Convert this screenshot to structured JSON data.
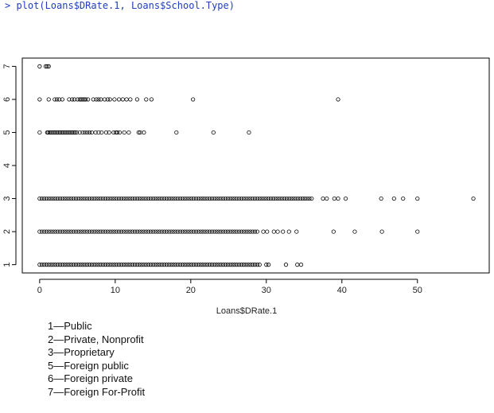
{
  "console": {
    "command": "> plot(Loans$DRate.1, Loans$School.Type)"
  },
  "chart_data": {
    "type": "scatter",
    "title": "",
    "xlabel": "Loans$DRate.1",
    "ylabel": "",
    "xlim": [
      -2.3,
      59.5
    ],
    "ylim": [
      0.75,
      7.25
    ],
    "x_ticks": [
      0,
      10,
      20,
      30,
      40,
      50
    ],
    "y_ticks": [
      1,
      2,
      3,
      4,
      5,
      6,
      7
    ],
    "marker": "open-circle",
    "grid": false,
    "legend": "none",
    "rows": [
      {
        "y": 1,
        "points": [
          0,
          0.3,
          0.6,
          0.9,
          1.2,
          1.5,
          1.8,
          2.1,
          2.4,
          2.7,
          3,
          3.3,
          3.6,
          3.9,
          4.2,
          4.5,
          4.8,
          5.1,
          5.4,
          5.7,
          6,
          6.3,
          6.6,
          6.9,
          7.2,
          7.5,
          7.8,
          8.1,
          8.4,
          8.7,
          9,
          9.3,
          9.6,
          9.9,
          10.2,
          10.5,
          10.8,
          11.1,
          11.4,
          11.7,
          12,
          12.3,
          12.6,
          12.9,
          13.2,
          13.5,
          13.8,
          14.1,
          14.4,
          14.7,
          15,
          15.3,
          15.6,
          15.9,
          16.2,
          16.5,
          16.8,
          17.1,
          17.4,
          17.7,
          18,
          18.3,
          18.6,
          18.9,
          19.2,
          19.5,
          19.8,
          20.1,
          20.4,
          20.7,
          21,
          21.3,
          21.6,
          21.9,
          22.2,
          22.5,
          22.8,
          23.1,
          23.4,
          23.7,
          24,
          24.3,
          24.6,
          24.9,
          25.2,
          25.5,
          25.8,
          26.1,
          26.4,
          26.7,
          27,
          27.3,
          27.6,
          27.9,
          28.2,
          28.5,
          28.8,
          29.1,
          30,
          30.3,
          32.6,
          34.1,
          34.6
        ]
      },
      {
        "y": 2,
        "points": [
          0,
          0.3,
          0.6,
          0.9,
          1.2,
          1.5,
          1.8,
          2.1,
          2.4,
          2.7,
          3,
          3.3,
          3.6,
          3.9,
          4.2,
          4.5,
          4.8,
          5.1,
          5.4,
          5.7,
          6,
          6.3,
          6.6,
          6.9,
          7.2,
          7.5,
          7.8,
          8.1,
          8.4,
          8.7,
          9,
          9.3,
          9.6,
          9.9,
          10.2,
          10.5,
          10.8,
          11.1,
          11.4,
          11.7,
          12,
          12.3,
          12.6,
          12.9,
          13.2,
          13.5,
          13.8,
          14.1,
          14.4,
          14.7,
          15,
          15.3,
          15.6,
          15.9,
          16.2,
          16.5,
          16.8,
          17.1,
          17.4,
          17.7,
          18,
          18.3,
          18.6,
          18.9,
          19.2,
          19.5,
          19.8,
          20.1,
          20.4,
          20.7,
          21,
          21.3,
          21.6,
          21.9,
          22.2,
          22.5,
          22.8,
          23.1,
          23.4,
          23.7,
          24,
          24.3,
          24.6,
          24.9,
          25.2,
          25.5,
          25.8,
          26.1,
          26.4,
          26.7,
          27,
          27.3,
          27.6,
          27.9,
          28.2,
          28.5,
          28.8,
          29.6,
          30.1,
          31,
          31.5,
          32.2,
          33,
          34,
          38.9,
          41.7,
          45.3,
          50
        ]
      },
      {
        "y": 3,
        "points": [
          0,
          0.3,
          0.6,
          0.9,
          1.2,
          1.5,
          1.8,
          2.1,
          2.4,
          2.7,
          3,
          3.3,
          3.6,
          3.9,
          4.2,
          4.5,
          4.8,
          5.1,
          5.4,
          5.7,
          6,
          6.3,
          6.6,
          6.9,
          7.2,
          7.5,
          7.8,
          8.1,
          8.4,
          8.7,
          9,
          9.3,
          9.6,
          9.9,
          10.2,
          10.5,
          10.8,
          11.1,
          11.4,
          11.7,
          12,
          12.3,
          12.6,
          12.9,
          13.2,
          13.5,
          13.8,
          14.1,
          14.4,
          14.7,
          15,
          15.3,
          15.6,
          15.9,
          16.2,
          16.5,
          16.8,
          17.1,
          17.4,
          17.7,
          18,
          18.3,
          18.6,
          18.9,
          19.2,
          19.5,
          19.8,
          20.1,
          20.4,
          20.7,
          21,
          21.3,
          21.6,
          21.9,
          22.2,
          22.5,
          22.8,
          23.1,
          23.4,
          23.7,
          24,
          24.3,
          24.6,
          24.9,
          25.2,
          25.5,
          25.8,
          26.1,
          26.4,
          26.7,
          27,
          27.3,
          27.6,
          27.9,
          28.2,
          28.5,
          28.8,
          29.1,
          29.4,
          29.7,
          30,
          30.3,
          30.6,
          30.9,
          31.2,
          31.5,
          31.8,
          32.1,
          32.4,
          32.7,
          33,
          33.3,
          33.6,
          33.9,
          34.2,
          34.5,
          34.8,
          35.1,
          35.4,
          35.7,
          36,
          37.5,
          38,
          39,
          39.5,
          40.5,
          45.2,
          46.9,
          48.1,
          50,
          57.4
        ]
      },
      {
        "y": 5,
        "points": [
          0,
          1,
          1.1,
          1.3,
          1.5,
          1.7,
          1.9,
          2.1,
          2.3,
          2.5,
          2.7,
          2.9,
          3.1,
          3.3,
          3.5,
          3.7,
          3.9,
          4.1,
          4.3,
          4.5,
          4.7,
          4.9,
          5.3,
          5.7,
          6,
          6.3,
          6.6,
          6.9,
          7.4,
          7.8,
          8.2,
          8.8,
          9.2,
          9.8,
          10.1,
          10.3,
          10.6,
          11.2,
          11.8,
          13.1,
          13.3,
          13.8,
          18.1,
          23,
          27.7
        ]
      },
      {
        "y": 6,
        "points": [
          0,
          1.2,
          2,
          2.3,
          2.6,
          3,
          3.9,
          4.3,
          4.6,
          5,
          5.3,
          5.5,
          5.7,
          5.9,
          6.1,
          6.4,
          7.1,
          7.5,
          7.8,
          8.1,
          8.6,
          9,
          9.3,
          9.9,
          10.5,
          11,
          11.5,
          12,
          12.9,
          14.1,
          14.8,
          20.3,
          39.5
        ]
      },
      {
        "y": 7,
        "points": [
          0,
          0.8,
          1,
          1.2
        ]
      }
    ]
  },
  "legend_lines": [
    "1—Public",
    "2—Private, Nonprofit",
    "3—Proprietary",
    "5—Foreign public",
    "6—Foreign private",
    "7—Foreign For-Profit"
  ]
}
